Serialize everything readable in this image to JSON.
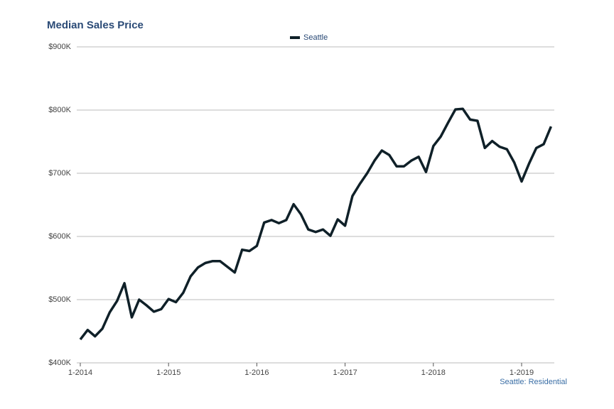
{
  "chart_data": {
    "type": "line",
    "title": "Median Sales Price",
    "annotation": "Seattle: Residential",
    "legend": "top",
    "grid": true,
    "categories": [
      "1-2014",
      null,
      null,
      null,
      null,
      null,
      null,
      null,
      null,
      null,
      null,
      null,
      "1-2015",
      null,
      null,
      null,
      null,
      null,
      null,
      null,
      null,
      null,
      null,
      null,
      "1-2016",
      null,
      null,
      null,
      null,
      null,
      null,
      null,
      null,
      null,
      null,
      null,
      "1-2017",
      null,
      null,
      null,
      null,
      null,
      null,
      null,
      null,
      null,
      null,
      null,
      "1-2018",
      null,
      null,
      null,
      null,
      null,
      null,
      null,
      null,
      null,
      null,
      null,
      "1-2019",
      null,
      null,
      null,
      null
    ],
    "series": [
      {
        "name": "Seattle",
        "color": "#0f2028",
        "values": [
          437000,
          452000,
          442000,
          454000,
          480000,
          498000,
          526000,
          472000,
          500000,
          491000,
          481000,
          485000,
          501000,
          496000,
          511000,
          537000,
          551000,
          558000,
          561000,
          561000,
          552000,
          543000,
          579000,
          577000,
          585000,
          622000,
          626000,
          621000,
          626000,
          651000,
          635000,
          611000,
          607000,
          611000,
          601000,
          627000,
          617000,
          664000,
          683000,
          700000,
          720000,
          736000,
          729000,
          711000,
          711000,
          720000,
          726000,
          702000,
          743000,
          758000,
          780000,
          801000,
          802000,
          785000,
          783000,
          740000,
          751000,
          742000,
          738000,
          717000,
          687000,
          715000,
          740000,
          746000,
          774000
        ]
      }
    ],
    "ylim": [
      400000,
      900000
    ],
    "yticks": [
      {
        "value": 400000,
        "label": "$400K"
      },
      {
        "value": 500000,
        "label": "$500K"
      },
      {
        "value": 600000,
        "label": "$600K"
      },
      {
        "value": 700000,
        "label": "$700K"
      },
      {
        "value": 800000,
        "label": "$800K"
      },
      {
        "value": 900000,
        "label": "$900K"
      }
    ]
  }
}
